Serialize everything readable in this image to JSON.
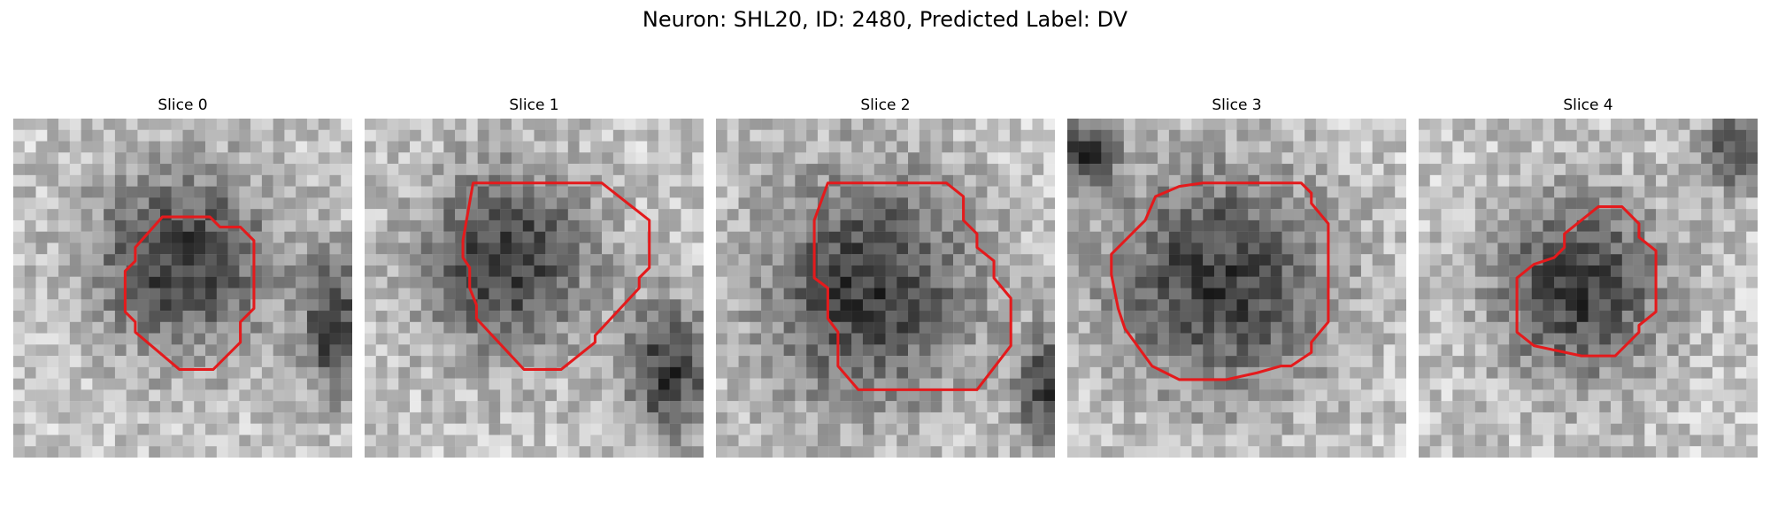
{
  "figure": {
    "title": "Neuron: SHL20, ID: 2480, Predicted Label: DV"
  },
  "panels": [
    {
      "title": "Slice 0",
      "seed": 11,
      "blob": [
        0.5,
        0.42,
        0.3,
        0.3
      ],
      "dark2": [
        0.95,
        0.62,
        0.1,
        0.22
      ],
      "contour": [
        [
          44,
          29
        ],
        [
          58,
          29
        ],
        [
          61,
          32
        ],
        [
          67,
          32
        ],
        [
          71,
          36
        ],
        [
          71,
          56
        ],
        [
          67,
          60
        ],
        [
          67,
          66
        ],
        [
          59,
          74
        ],
        [
          49,
          74
        ],
        [
          36,
          63
        ],
        [
          36,
          60
        ],
        [
          33,
          57
        ],
        [
          33,
          45
        ],
        [
          36,
          42
        ],
        [
          36,
          38
        ]
      ]
    },
    {
      "title": "Slice 1",
      "seed": 23,
      "blob": [
        0.42,
        0.42,
        0.28,
        0.3
      ],
      "dark2": [
        0.9,
        0.75,
        0.14,
        0.22
      ],
      "contour": [
        [
          32,
          19
        ],
        [
          70,
          19
        ],
        [
          84,
          30
        ],
        [
          84,
          44
        ],
        [
          81,
          47
        ],
        [
          81,
          50
        ],
        [
          68,
          64
        ],
        [
          68,
          66
        ],
        [
          58,
          74
        ],
        [
          47,
          74
        ],
        [
          33,
          59
        ],
        [
          33,
          55
        ],
        [
          31,
          50
        ],
        [
          31,
          44
        ],
        [
          29,
          41
        ],
        [
          29,
          36
        ]
      ]
    },
    {
      "title": "Slice 2",
      "seed": 37,
      "blob": [
        0.45,
        0.5,
        0.35,
        0.38
      ],
      "dark2": [
        0.98,
        0.8,
        0.1,
        0.18
      ],
      "contour": [
        [
          33,
          19
        ],
        [
          68,
          19
        ],
        [
          73,
          23
        ],
        [
          73,
          30
        ],
        [
          77,
          34
        ],
        [
          77,
          38
        ],
        [
          82,
          42
        ],
        [
          82,
          47
        ],
        [
          87,
          53
        ],
        [
          87,
          67
        ],
        [
          77,
          80
        ],
        [
          42,
          80
        ],
        [
          36,
          73
        ],
        [
          36,
          63
        ],
        [
          33,
          59
        ],
        [
          33,
          50
        ],
        [
          29,
          47
        ],
        [
          29,
          30
        ]
      ]
    },
    {
      "title": "Slice 3",
      "seed": 51,
      "blob": [
        0.45,
        0.48,
        0.36,
        0.36
      ],
      "dark2": [
        0.05,
        0.1,
        0.1,
        0.12
      ],
      "contour": [
        [
          26,
          23
        ],
        [
          33,
          20
        ],
        [
          40,
          19
        ],
        [
          69,
          19
        ],
        [
          72,
          22
        ],
        [
          72,
          25
        ],
        [
          77,
          31
        ],
        [
          77,
          60
        ],
        [
          72,
          66
        ],
        [
          72,
          69
        ],
        [
          66,
          73
        ],
        [
          63,
          73
        ],
        [
          56,
          75
        ],
        [
          47,
          77
        ],
        [
          33,
          77
        ],
        [
          25,
          73
        ],
        [
          17,
          62
        ],
        [
          15,
          56
        ],
        [
          13,
          46
        ],
        [
          13,
          40
        ],
        [
          23,
          30
        ]
      ]
    },
    {
      "title": "Slice 4",
      "seed": 67,
      "blob": [
        0.47,
        0.5,
        0.27,
        0.3
      ],
      "dark2": [
        0.95,
        0.1,
        0.12,
        0.12
      ],
      "contour": [
        [
          53,
          26
        ],
        [
          60,
          26
        ],
        [
          65,
          31
        ],
        [
          65,
          35
        ],
        [
          70,
          39
        ],
        [
          70,
          57
        ],
        [
          65,
          61
        ],
        [
          65,
          63
        ],
        [
          58,
          70
        ],
        [
          48,
          70
        ],
        [
          34,
          67
        ],
        [
          29,
          63
        ],
        [
          29,
          47
        ],
        [
          34,
          43
        ],
        [
          40,
          41
        ],
        [
          43,
          38
        ],
        [
          43,
          34
        ]
      ]
    }
  ],
  "colors": {
    "contour": "#e41a1c"
  }
}
